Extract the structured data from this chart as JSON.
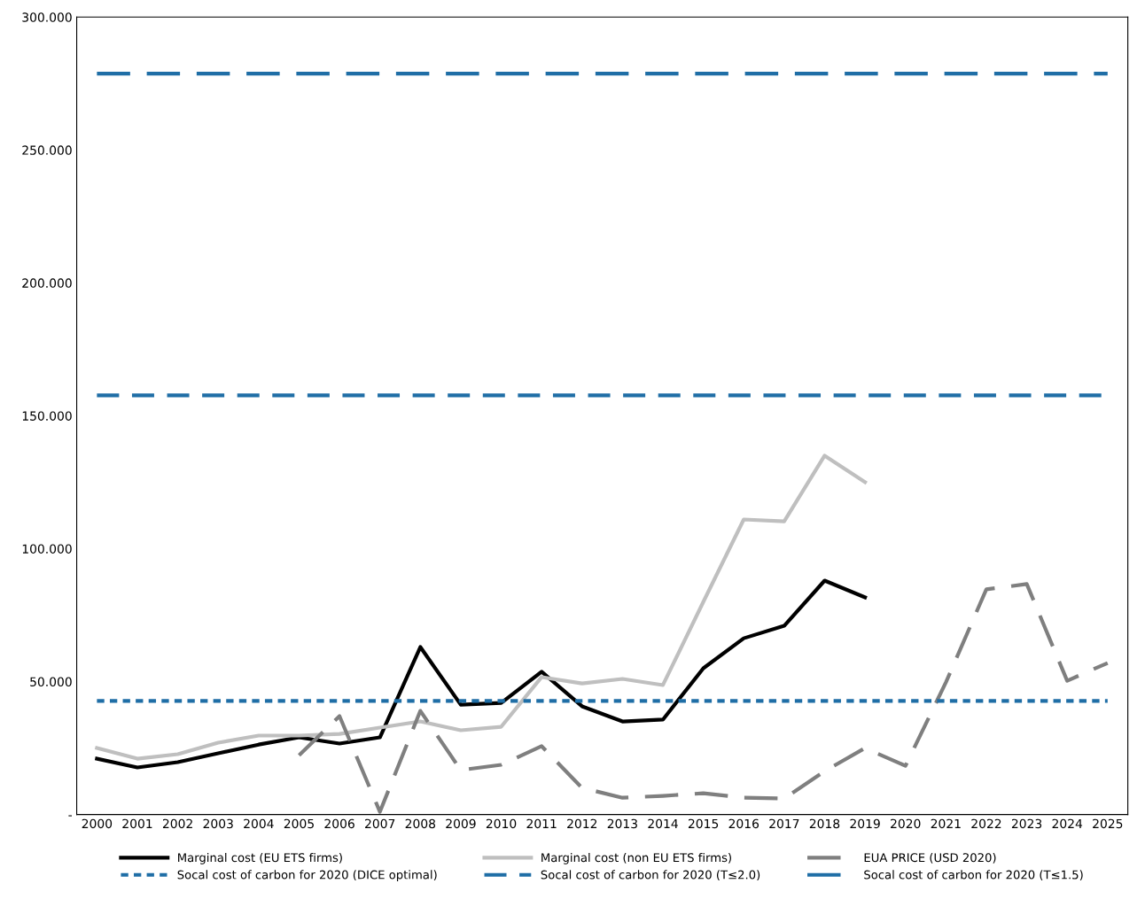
{
  "chart_data": {
    "type": "line",
    "categories": [
      "2000",
      "2001",
      "2002",
      "2003",
      "2004",
      "2005",
      "2006",
      "2007",
      "2008",
      "2009",
      "2010",
      "2011",
      "2012",
      "2013",
      "2014",
      "2015",
      "2016",
      "2017",
      "2018",
      "2019",
      "2020",
      "2021",
      "2022",
      "2023",
      "2024",
      "2025"
    ],
    "series": [
      {
        "name": "Marginal cost (EU ETS firms)",
        "color": "#000000",
        "line_style": "solid",
        "values": [
          21,
          17.7,
          19.7,
          23,
          26.3,
          29,
          26.7,
          29,
          63,
          41.3,
          42,
          53.7,
          40.7,
          35,
          35.7,
          55,
          66.3,
          71,
          88,
          81.7,
          null,
          null,
          null,
          null,
          null,
          null
        ]
      },
      {
        "name": "Marginal cost (non EU ETS firms)",
        "color": "#bfbfbf",
        "line_style": "solid",
        "values": [
          25,
          21,
          22.7,
          27,
          29.7,
          29.7,
          30.3,
          32.7,
          35,
          31.7,
          33,
          51.7,
          49.3,
          51,
          48.7,
          80,
          111,
          110.3,
          135,
          125,
          null,
          null,
          null,
          null,
          null,
          null
        ]
      },
      {
        "name": "EUA PRICE (USD 2020)",
        "color": "#7f7f7f",
        "line_style": "dashed",
        "values": [
          null,
          null,
          null,
          null,
          null,
          22.3,
          37,
          1,
          39,
          16.7,
          18.7,
          25.7,
          10,
          6.3,
          7,
          8,
          6.3,
          6,
          16.3,
          25,
          18.3,
          49.7,
          84.7,
          86.7,
          50.3,
          57
        ]
      }
    ],
    "ref_lines": [
      {
        "axis": "y",
        "value": 42.7,
        "label": "Socal cost of carbon for 2020 (DICE optimal)",
        "color": "#1f6ea6",
        "line_style": "dotted"
      },
      {
        "axis": "y",
        "value": 157.7,
        "label": "Socal cost of carbon for 2020 (T≤2.0)",
        "color": "#1f6ea6",
        "line_style": "dashed"
      },
      {
        "axis": "y",
        "value": 278.7,
        "label": "Socal cost of carbon for 2020 (T≤1.5)",
        "color": "#1f6ea6",
        "line_style": "dashed"
      }
    ],
    "ylim": [
      0,
      300
    ],
    "yticks": [
      {
        "value": 0,
        "label": "-"
      },
      {
        "value": 50,
        "label": "50.000"
      },
      {
        "value": 100,
        "label": "100.000"
      },
      {
        "value": 150,
        "label": "150.000"
      },
      {
        "value": 200,
        "label": "200.000"
      },
      {
        "value": 250,
        "label": "250.000"
      },
      {
        "value": 300,
        "label": "300.000"
      }
    ],
    "grid": false,
    "legend": "bottom",
    "marker": "none"
  }
}
